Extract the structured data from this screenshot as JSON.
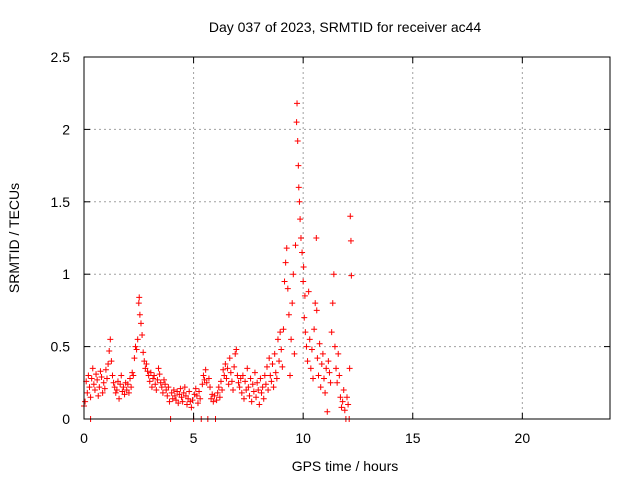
{
  "chart_data": {
    "type": "scatter",
    "title": "Day 037 of 2023, SRMTID for receiver ac44",
    "xlabel": "GPS time / hours",
    "ylabel": "SRMTID / TECUs",
    "xlim": [
      0,
      24
    ],
    "ylim": [
      0,
      2.5
    ],
    "xticks": [
      0,
      5,
      10,
      15,
      20
    ],
    "xtick_labels": [
      "0",
      "5",
      "10",
      "15",
      "20"
    ],
    "yticks": [
      0,
      0.5,
      1,
      1.5,
      2,
      2.5
    ],
    "ytick_labels": [
      "0",
      "0.5",
      "1",
      "1.5",
      "2",
      "2.5"
    ],
    "grid": true,
    "marker": "+",
    "color": "#ff0000",
    "series": [
      {
        "name": "ac44",
        "points": [
          [
            0.0,
            0.09
          ],
          [
            0.05,
            0.12
          ],
          [
            0.1,
            0.26
          ],
          [
            0.15,
            0.18
          ],
          [
            0.2,
            0.3
          ],
          [
            0.25,
            0.22
          ],
          [
            0.3,
            0.15
          ],
          [
            0.35,
            0.28
          ],
          [
            0.4,
            0.35
          ],
          [
            0.45,
            0.24
          ],
          [
            0.5,
            0.2
          ],
          [
            0.55,
            0.31
          ],
          [
            0.6,
            0.27
          ],
          [
            0.65,
            0.16
          ],
          [
            0.7,
            0.22
          ],
          [
            0.75,
            0.33
          ],
          [
            0.8,
            0.29
          ],
          [
            0.85,
            0.18
          ],
          [
            0.9,
            0.25
          ],
          [
            0.95,
            0.21
          ],
          [
            1.0,
            0.34
          ],
          [
            1.05,
            0.28
          ],
          [
            1.1,
            0.38
          ],
          [
            1.15,
            0.47
          ],
          [
            1.2,
            0.55
          ],
          [
            1.25,
            0.4
          ],
          [
            1.3,
            0.3
          ],
          [
            1.35,
            0.25
          ],
          [
            1.4,
            0.22
          ],
          [
            1.45,
            0.18
          ],
          [
            1.5,
            0.2
          ],
          [
            1.55,
            0.26
          ],
          [
            1.6,
            0.14
          ],
          [
            1.65,
            0.24
          ],
          [
            1.7,
            0.3
          ],
          [
            1.75,
            0.19
          ],
          [
            1.8,
            0.22
          ],
          [
            1.85,
            0.17
          ],
          [
            1.9,
            0.25
          ],
          [
            1.95,
            0.2
          ],
          [
            2.0,
            0.24
          ],
          [
            2.05,
            0.18
          ],
          [
            2.1,
            0.28
          ],
          [
            2.15,
            0.22
          ],
          [
            2.2,
            0.32
          ],
          [
            2.25,
            0.3
          ],
          [
            2.3,
            0.42
          ],
          [
            2.35,
            0.5
          ],
          [
            2.4,
            0.48
          ],
          [
            2.45,
            0.55
          ],
          [
            2.5,
            0.8
          ],
          [
            2.52,
            0.84
          ],
          [
            2.55,
            0.72
          ],
          [
            2.6,
            0.66
          ],
          [
            2.65,
            0.58
          ],
          [
            2.7,
            0.46
          ],
          [
            2.75,
            0.4
          ],
          [
            2.8,
            0.35
          ],
          [
            2.85,
            0.38
          ],
          [
            2.9,
            0.33
          ],
          [
            2.95,
            0.3
          ],
          [
            3.0,
            0.26
          ],
          [
            3.05,
            0.32
          ],
          [
            3.1,
            0.22
          ],
          [
            3.15,
            0.28
          ],
          [
            3.2,
            0.3
          ],
          [
            3.25,
            0.24
          ],
          [
            3.3,
            0.2
          ],
          [
            3.35,
            0.27
          ],
          [
            3.4,
            0.35
          ],
          [
            3.45,
            0.31
          ],
          [
            3.5,
            0.25
          ],
          [
            3.55,
            0.22
          ],
          [
            3.6,
            0.18
          ],
          [
            3.65,
            0.27
          ],
          [
            3.7,
            0.24
          ],
          [
            3.75,
            0.2
          ],
          [
            3.8,
            0.16
          ],
          [
            3.85,
            0.22
          ],
          [
            3.9,
            0.12
          ],
          [
            3.95,
            0.0
          ],
          [
            4.0,
            0.18
          ],
          [
            4.05,
            0.14
          ],
          [
            4.1,
            0.2
          ],
          [
            4.15,
            0.16
          ],
          [
            4.2,
            0.13
          ],
          [
            4.25,
            0.19
          ],
          [
            4.3,
            0.11
          ],
          [
            4.35,
            0.17
          ],
          [
            4.4,
            0.21
          ],
          [
            4.45,
            0.15
          ],
          [
            4.5,
            0.12
          ],
          [
            4.55,
            0.18
          ],
          [
            4.6,
            0.22
          ],
          [
            4.65,
            0.16
          ],
          [
            4.7,
            0.1
          ],
          [
            4.75,
            0.14
          ],
          [
            4.8,
            0.19
          ],
          [
            4.85,
            0.12
          ],
          [
            4.9,
            0.08
          ],
          [
            4.95,
            0.13
          ],
          [
            5.0,
            0.0
          ],
          [
            5.05,
            0.17
          ],
          [
            5.1,
            0.21
          ],
          [
            5.15,
            0.16
          ],
          [
            5.2,
            0.11
          ],
          [
            5.25,
            0.19
          ],
          [
            5.3,
            0.14
          ],
          [
            5.35,
            0.0
          ],
          [
            5.4,
            0.24
          ],
          [
            5.45,
            0.3
          ],
          [
            5.5,
            0.27
          ],
          [
            5.55,
            0.34
          ],
          [
            5.6,
            0.25
          ],
          [
            5.65,
            0.0
          ],
          [
            5.7,
            0.28
          ],
          [
            5.75,
            0.22
          ],
          [
            5.8,
            0.14
          ],
          [
            5.85,
            0.17
          ],
          [
            5.9,
            0.12
          ],
          [
            5.95,
            0.16
          ],
          [
            6.0,
            0.0
          ],
          [
            6.05,
            0.13
          ],
          [
            6.1,
            0.18
          ],
          [
            6.15,
            0.22
          ],
          [
            6.2,
            0.15
          ],
          [
            6.25,
            0.26
          ],
          [
            6.3,
            0.2
          ],
          [
            6.35,
            0.34
          ],
          [
            6.4,
            0.3
          ],
          [
            6.45,
            0.38
          ],
          [
            6.5,
            0.28
          ],
          [
            6.55,
            0.35
          ],
          [
            6.6,
            0.24
          ],
          [
            6.65,
            0.42
          ],
          [
            6.7,
            0.32
          ],
          [
            6.75,
            0.26
          ],
          [
            6.8,
            0.2
          ],
          [
            6.85,
            0.36
          ],
          [
            6.9,
            0.45
          ],
          [
            6.95,
            0.48
          ],
          [
            7.0,
            0.3
          ],
          [
            7.05,
            0.25
          ],
          [
            7.1,
            0.22
          ],
          [
            7.15,
            0.28
          ],
          [
            7.2,
            0.18
          ],
          [
            7.25,
            0.3
          ],
          [
            7.3,
            0.14
          ],
          [
            7.35,
            0.26
          ],
          [
            7.4,
            0.2
          ],
          [
            7.45,
            0.35
          ],
          [
            7.5,
            0.22
          ],
          [
            7.55,
            0.16
          ],
          [
            7.6,
            0.28
          ],
          [
            7.65,
            0.12
          ],
          [
            7.7,
            0.24
          ],
          [
            7.75,
            0.19
          ],
          [
            7.8,
            0.32
          ],
          [
            7.85,
            0.15
          ],
          [
            7.9,
            0.25
          ],
          [
            7.95,
            0.2
          ],
          [
            8.0,
            0.1
          ],
          [
            8.05,
            0.28
          ],
          [
            8.1,
            0.18
          ],
          [
            8.15,
            0.22
          ],
          [
            8.2,
            0.14
          ],
          [
            8.25,
            0.3
          ],
          [
            8.3,
            0.24
          ],
          [
            8.35,
            0.36
          ],
          [
            8.4,
            0.2
          ],
          [
            8.45,
            0.42
          ],
          [
            8.5,
            0.3
          ],
          [
            8.55,
            0.26
          ],
          [
            8.6,
            0.38
          ],
          [
            8.65,
            0.22
          ],
          [
            8.7,
            0.45
          ],
          [
            8.75,
            0.32
          ],
          [
            8.8,
            0.28
          ],
          [
            8.85,
            0.55
          ],
          [
            8.9,
            0.4
          ],
          [
            8.95,
            0.6
          ],
          [
            9.0,
            0.48
          ],
          [
            9.05,
            0.36
          ],
          [
            9.1,
            0.62
          ],
          [
            9.15,
            0.95
          ],
          [
            9.2,
            1.08
          ],
          [
            9.25,
            1.18
          ],
          [
            9.3,
            0.9
          ],
          [
            9.35,
            0.72
          ],
          [
            9.4,
            0.3
          ],
          [
            9.45,
            0.55
          ],
          [
            9.5,
            0.8
          ],
          [
            9.55,
            1.0
          ],
          [
            9.6,
            0.45
          ],
          [
            9.65,
            1.2
          ],
          [
            9.7,
            2.05
          ],
          [
            9.72,
            2.18
          ],
          [
            9.75,
            1.92
          ],
          [
            9.78,
            1.75
          ],
          [
            9.8,
            1.6
          ],
          [
            9.83,
            1.5
          ],
          [
            9.86,
            1.38
          ],
          [
            9.9,
            1.25
          ],
          [
            9.95,
            1.15
          ],
          [
            10.0,
            0.95
          ],
          [
            10.02,
            1.05
          ],
          [
            10.05,
            0.7
          ],
          [
            10.08,
            0.85
          ],
          [
            10.1,
            0.6
          ],
          [
            10.15,
            0.5
          ],
          [
            10.2,
            0.4
          ],
          [
            10.25,
            0.88
          ],
          [
            10.3,
            0.55
          ],
          [
            10.35,
            0.35
          ],
          [
            10.4,
            0.48
          ],
          [
            10.45,
            0.28
          ],
          [
            10.5,
            0.62
          ],
          [
            10.55,
            0.8
          ],
          [
            10.6,
            1.25
          ],
          [
            10.62,
            0.75
          ],
          [
            10.65,
            0.42
          ],
          [
            10.7,
            0.3
          ],
          [
            10.75,
            0.52
          ],
          [
            10.8,
            0.22
          ],
          [
            10.85,
            0.38
          ],
          [
            10.9,
            0.45
          ],
          [
            10.95,
            0.28
          ],
          [
            11.0,
            0.18
          ],
          [
            11.05,
            0.35
          ],
          [
            11.1,
            0.05
          ],
          [
            11.15,
            0.4
          ],
          [
            11.2,
            0.32
          ],
          [
            11.25,
            0.25
          ],
          [
            11.3,
            0.6
          ],
          [
            11.35,
            0.8
          ],
          [
            11.4,
            1.0
          ],
          [
            11.45,
            0.5
          ],
          [
            11.5,
            0.35
          ],
          [
            11.55,
            0.25
          ],
          [
            11.6,
            0.45
          ],
          [
            11.65,
            0.3
          ],
          [
            11.7,
            0.15
          ],
          [
            11.75,
            0.08
          ],
          [
            11.8,
            0.12
          ],
          [
            11.85,
            0.2
          ],
          [
            11.9,
            0.06
          ],
          [
            11.95,
            0.0
          ],
          [
            12.0,
            0.15
          ],
          [
            12.05,
            0.1
          ],
          [
            12.1,
            0.0
          ],
          [
            12.12,
            0.35
          ],
          [
            12.15,
            1.4
          ],
          [
            12.18,
            1.23
          ],
          [
            12.2,
            0.99
          ],
          [
            0.3,
            0.0
          ]
        ]
      }
    ]
  }
}
